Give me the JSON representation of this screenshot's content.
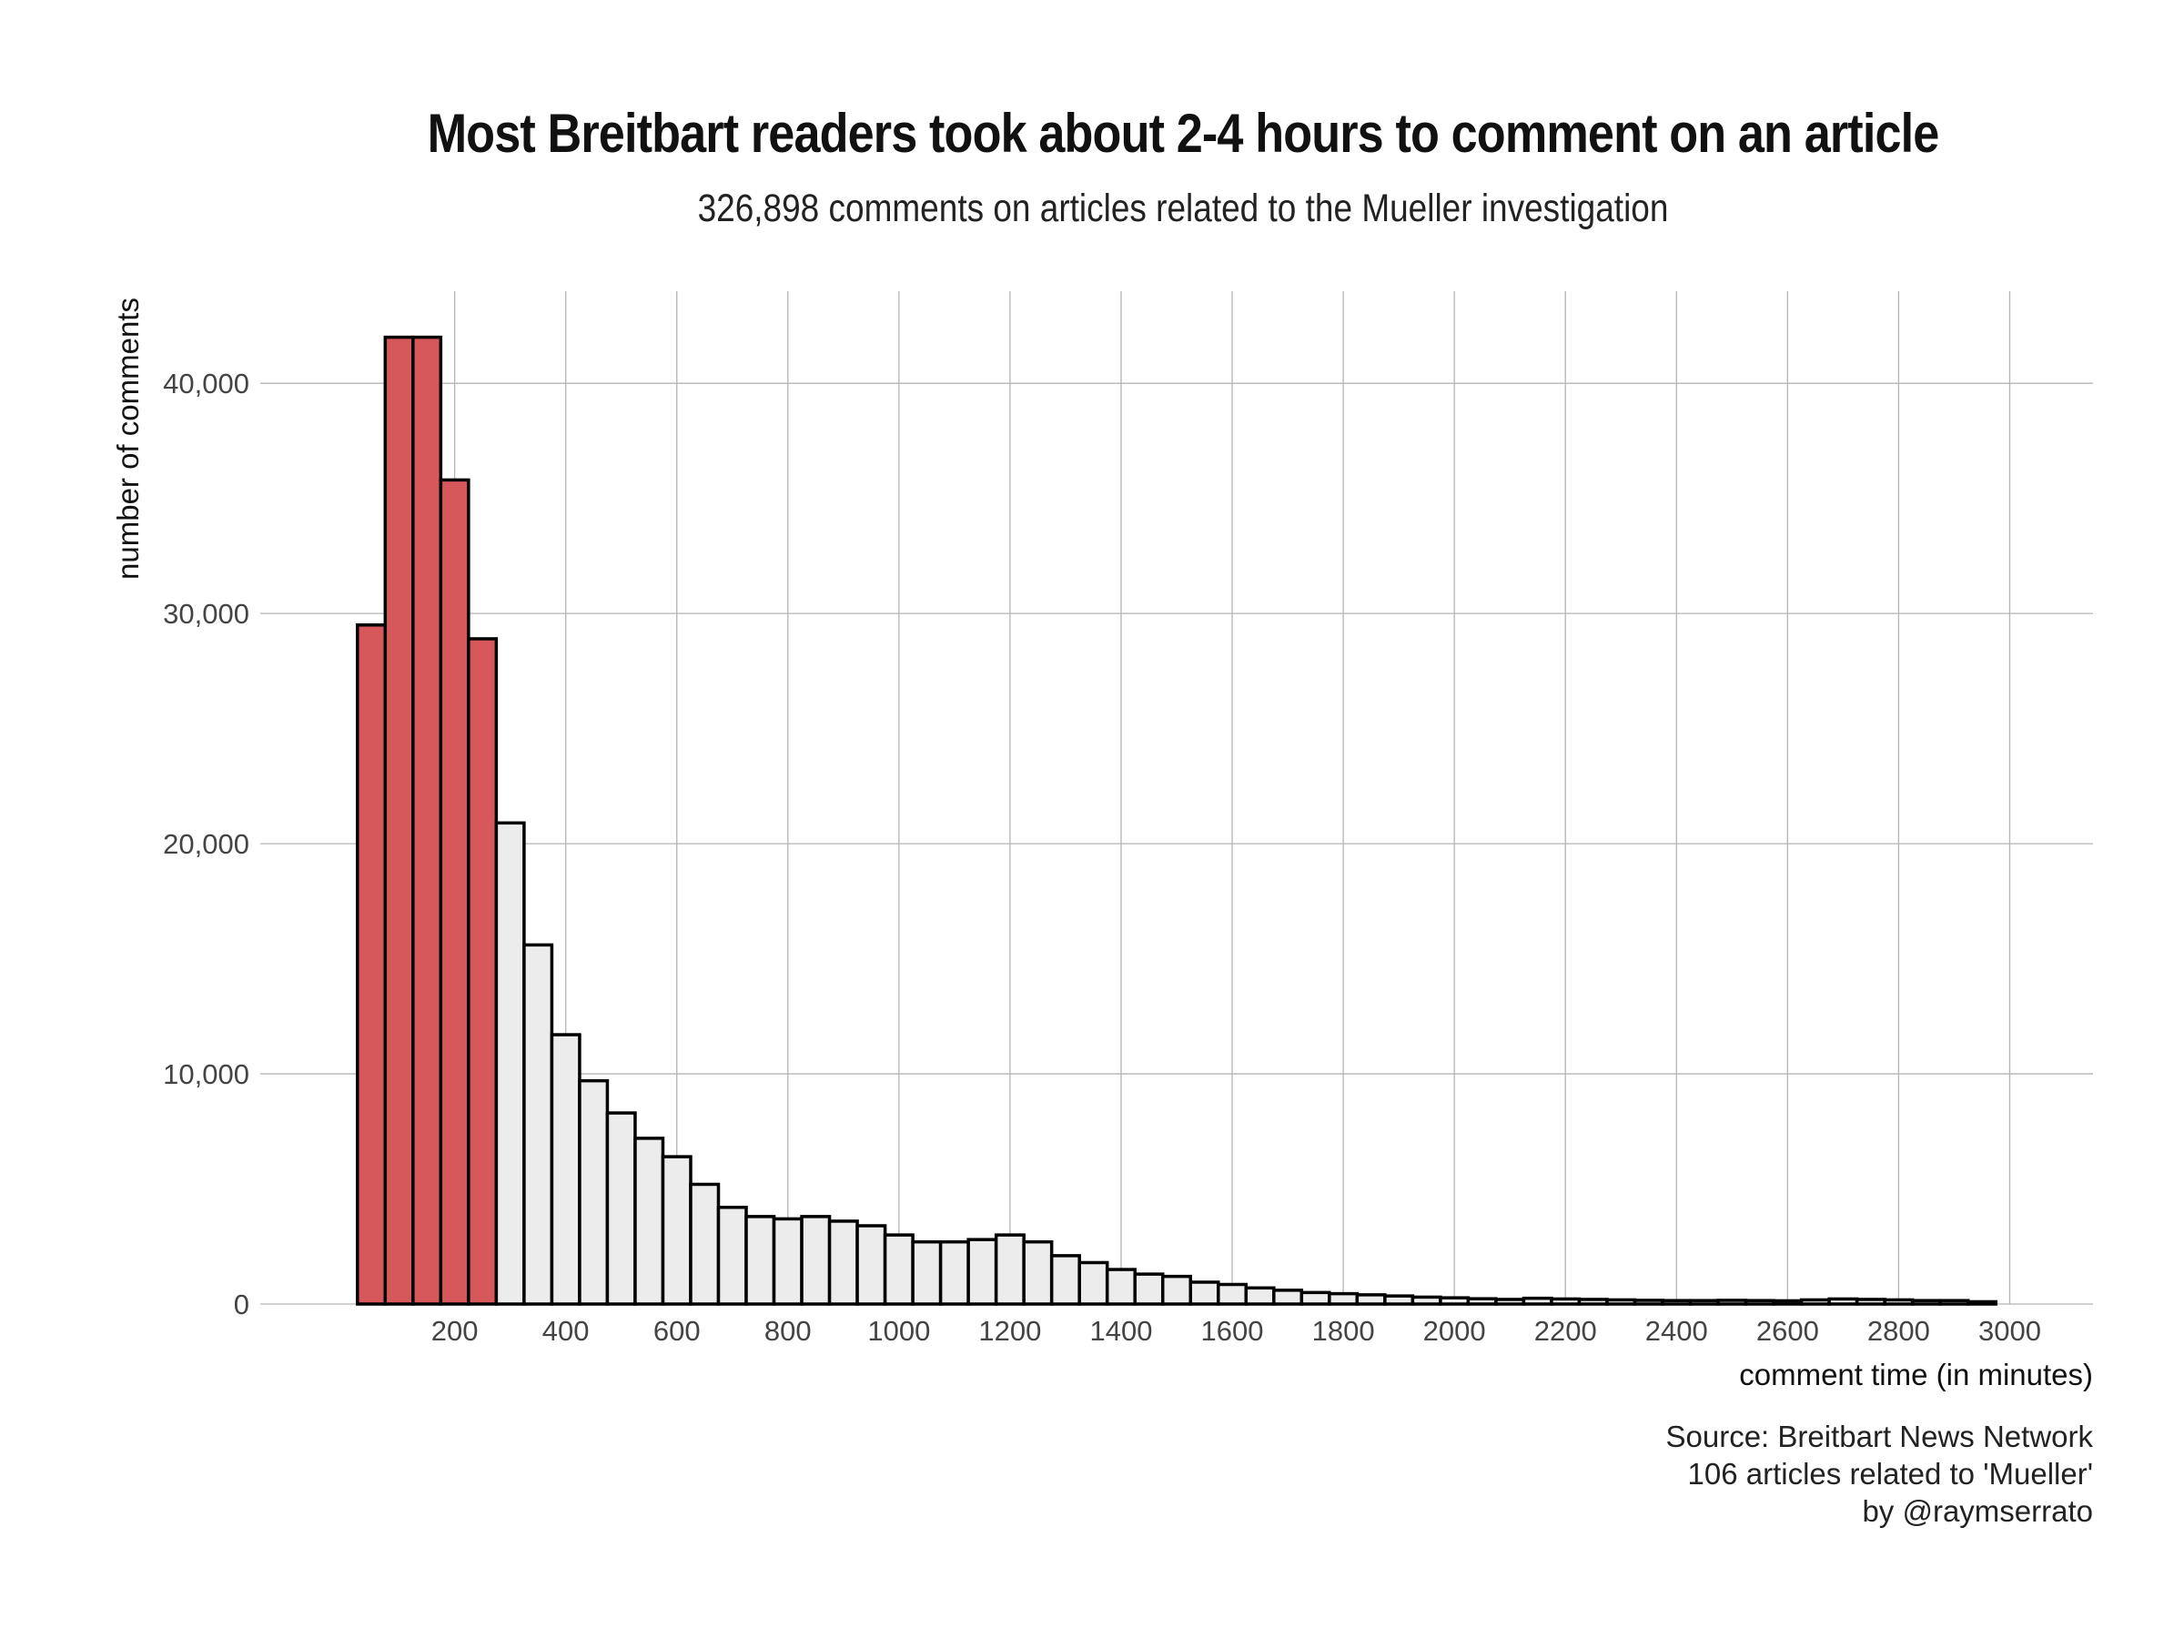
{
  "chart_data": {
    "type": "bar",
    "title": "Most Breitbart readers took about 2-4 hours to comment on an article",
    "subtitle": "326,898 comments on articles related to the Mueller investigation",
    "xlabel": "comment time (in minutes)",
    "ylabel": "number of comments",
    "bin_width_minutes": 50,
    "bin_starts": [
      25,
      75,
      125,
      175,
      225,
      275,
      325,
      375,
      425,
      475,
      525,
      575,
      625,
      675,
      725,
      775,
      825,
      875,
      925,
      975,
      1025,
      1075,
      1125,
      1175,
      1225,
      1275,
      1325,
      1375,
      1425,
      1475,
      1525,
      1575,
      1625,
      1675,
      1725,
      1775,
      1825,
      1875,
      1925,
      1975,
      2025,
      2075,
      2125,
      2175,
      2225,
      2275,
      2325,
      2375,
      2425,
      2475,
      2525,
      2575,
      2625,
      2675,
      2725,
      2775,
      2825,
      2875,
      2925
    ],
    "values": [
      29500,
      42000,
      42000,
      35800,
      28900,
      20900,
      15600,
      11700,
      9700,
      8300,
      7200,
      6400,
      5200,
      4200,
      3800,
      3700,
      3800,
      3600,
      3400,
      3000,
      2700,
      2700,
      2800,
      3000,
      2700,
      2100,
      1800,
      1500,
      1300,
      1200,
      950,
      850,
      700,
      600,
      500,
      450,
      400,
      350,
      300,
      270,
      230,
      200,
      250,
      220,
      200,
      180,
      160,
      150,
      150,
      160,
      150,
      140,
      180,
      220,
      200,
      180,
      150,
      150,
      100
    ],
    "highlight_count": 5,
    "highlight_color": "#d7585b",
    "bar_color": "#ececec",
    "outline_color": "#000000",
    "xlim": [
      -150,
      3150
    ],
    "ylim": [
      0,
      42000
    ],
    "x_ticks": [
      200,
      400,
      600,
      800,
      1000,
      1200,
      1400,
      1600,
      1800,
      2000,
      2200,
      2400,
      2600,
      2800,
      3000
    ],
    "y_ticks": [
      0,
      10000,
      20000,
      30000,
      40000
    ],
    "x_tick_labels": [
      "200",
      "400",
      "600",
      "800",
      "1000",
      "1200",
      "1400",
      "1600",
      "1800",
      "2000",
      "2200",
      "2400",
      "2600",
      "2800",
      "3000"
    ],
    "y_tick_labels": [
      "0",
      "10,000",
      "20,000",
      "30,000",
      "40,000"
    ],
    "grid": true,
    "legend": false
  },
  "caption": {
    "source": "Source: Breitbart News Network",
    "articles": "106 articles related to 'Mueller'",
    "author": "by @raymserrato"
  }
}
